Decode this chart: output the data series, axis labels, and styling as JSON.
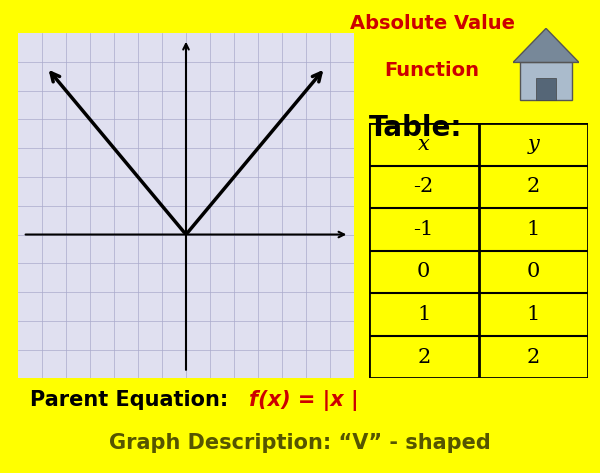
{
  "background_color": "#FFFF00",
  "title_line1": "Absolute Value",
  "title_line2": "Function",
  "title_color": "#CC0000",
  "title_fontsize": 14,
  "table_label": "Table:",
  "table_label_color": "#000000",
  "table_label_fontsize": 20,
  "table_x_vals": [
    "x",
    "-2",
    "-1",
    "0",
    "1",
    "2"
  ],
  "table_y_vals": [
    "y",
    "2",
    "1",
    "0",
    "1",
    "2"
  ],
  "table_bg": "#FFFF00",
  "table_border": "#000000",
  "graph_bg": "#E0E0F0",
  "graph_grid_color": "#AAAACC",
  "graph_line_color": "#000000",
  "parent_eq_black": "Parent Equation:  ",
  "parent_eq_red": "f(x) = |x |",
  "parent_eq_fontsize": 15,
  "graph_desc": "Graph Description: “V” - shaped",
  "graph_desc_fontsize": 15,
  "graph_desc_color": "#555500",
  "home_body_color": "#AABBCC",
  "home_roof_color": "#778899",
  "home_bg_color": "#AACCDD"
}
